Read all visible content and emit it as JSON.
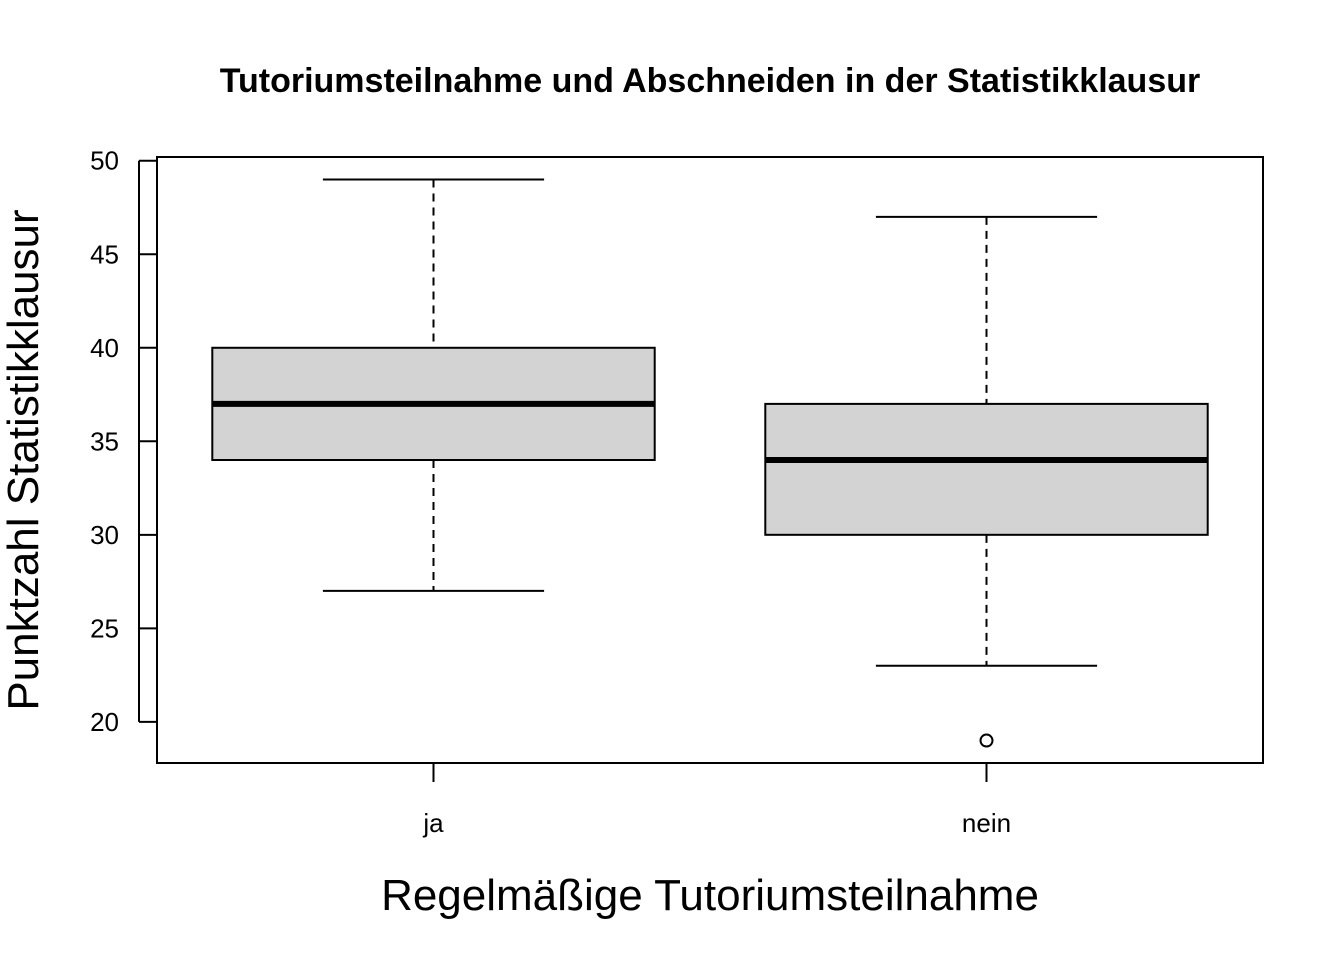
{
  "chart_data": {
    "type": "boxplot",
    "title": "Tutoriumsteilnahme und Abschneiden in der Statistikklausur",
    "xlabel": "Regelmäßige Tutoriumsteilnahme",
    "ylabel": "Punktzahl Statistikklausur",
    "categories": [
      "ja",
      "nein"
    ],
    "ylim": [
      17.8,
      50.2
    ],
    "yticks": [
      20,
      25,
      30,
      35,
      40,
      45,
      50
    ],
    "ytick_labels": [
      "20",
      "25",
      "30",
      "35",
      "40",
      "45",
      "50"
    ],
    "boxes": [
      {
        "category": "ja",
        "whisker_low": 27,
        "q1": 34,
        "median": 37,
        "q3": 40,
        "whisker_high": 49,
        "outliers": []
      },
      {
        "category": "nein",
        "whisker_low": 23,
        "q1": 30,
        "median": 34,
        "q3": 37,
        "whisker_high": 47,
        "outliers": [
          19
        ]
      }
    ],
    "box_fill": "#d3d3d3",
    "line_color": "#000000",
    "grid": false,
    "legend": "none"
  }
}
